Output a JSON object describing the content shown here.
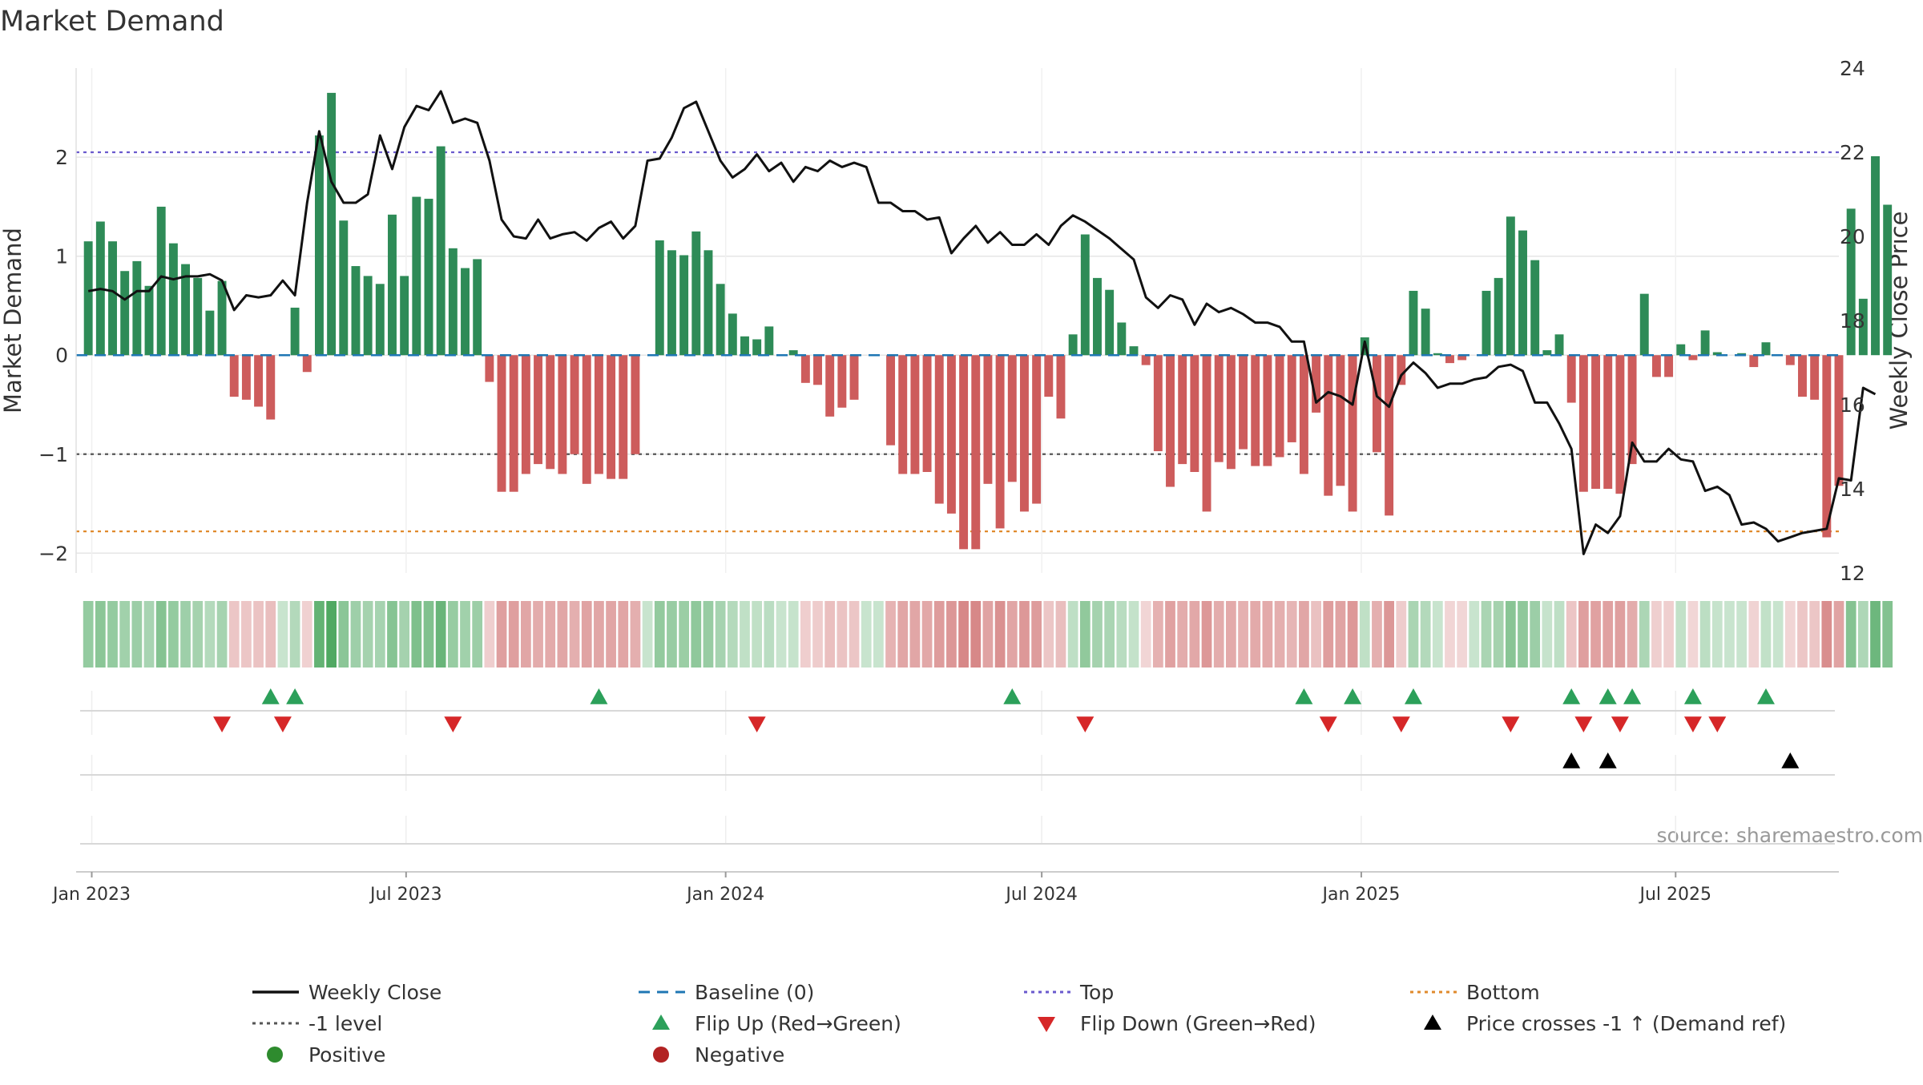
{
  "chart_data": {
    "type": "bar",
    "title": "Market Demand",
    "ylabel_left": "Market Demand",
    "ylabel_right": "Weekly Close Price",
    "left_axis": {
      "ylim": [
        -2.2,
        2.9
      ],
      "ticks": [
        -2,
        -1,
        0,
        1,
        2
      ],
      "tick_labels": [
        "−2",
        "−1",
        "0",
        "1",
        "2"
      ]
    },
    "right_axis": {
      "ylim": [
        12,
        24
      ],
      "ticks": [
        12,
        14,
        16,
        18,
        20,
        22,
        24
      ],
      "tick_labels": [
        "12",
        "14",
        "16",
        "18",
        "20",
        "22",
        "24"
      ]
    },
    "x_axis": {
      "start": "2022-12-23",
      "end": "2025-10-03",
      "ticks": [
        {
          "date": "2023-01-01",
          "label": "Jan 2023"
        },
        {
          "date": "2023-07-01",
          "label": "Jul 2023"
        },
        {
          "date": "2024-01-01",
          "label": "Jan 2024"
        },
        {
          "date": "2024-07-01",
          "label": "Jul 2024"
        },
        {
          "date": "2025-01-01",
          "label": "Jan 2025"
        },
        {
          "date": "2025-07-01",
          "label": "Jul 2025"
        }
      ]
    },
    "first_week": "2022-12-30",
    "demand": [
      1.15,
      1.35,
      1.15,
      0.85,
      0.95,
      0.7,
      1.5,
      1.13,
      0.92,
      0.78,
      0.45,
      0.75,
      -0.42,
      -0.45,
      -0.52,
      -0.65,
      0,
      0.48,
      -0.17,
      2.22,
      2.65,
      1.36,
      0.9,
      0.8,
      0.72,
      1.42,
      0.8,
      1.6,
      1.58,
      2.11,
      1.08,
      0.88,
      0.97,
      -0.27,
      -1.38,
      -1.38,
      -1.2,
      -1.1,
      -1.15,
      -1.2,
      -1.0,
      -1.3,
      -1.2,
      -1.25,
      -1.25,
      -1.0,
      0,
      1.16,
      1.06,
      1.01,
      1.25,
      1.06,
      0.72,
      0.42,
      0.19,
      0.16,
      0.29,
      0,
      0.05,
      -0.28,
      -0.3,
      -0.62,
      -0.53,
      -0.45,
      0,
      0,
      -0.91,
      -1.2,
      -1.2,
      -1.18,
      -1.5,
      -1.6,
      -1.96,
      -1.96,
      -1.3,
      -1.75,
      -1.28,
      -1.58,
      -1.5,
      -0.42,
      -0.64,
      0.21,
      1.22,
      0.78,
      0.66,
      0.33,
      0.09,
      -0.1,
      -0.97,
      -1.33,
      -1.1,
      -1.18,
      -1.58,
      -1.08,
      -1.15,
      -0.95,
      -1.12,
      -1.12,
      -1.03,
      -0.88,
      -1.2,
      -0.58,
      -1.42,
      -1.32,
      -1.58,
      0.18,
      -0.98,
      -1.62,
      -0.3,
      0.65,
      0.47,
      0.02,
      -0.08,
      -0.05,
      0,
      0.65,
      0.78,
      1.4,
      1.26,
      0.96,
      0.05,
      0.21,
      -0.48,
      -1.38,
      -1.35,
      -1.35,
      -1.4,
      -1.1,
      0.62,
      -0.22,
      -0.22,
      0.11,
      -0.05,
      0.25,
      0.03,
      0,
      0.02,
      -0.12,
      0.13,
      0,
      -0.1,
      -0.42,
      -0.45,
      -1.84,
      -1.32,
      1.48,
      0.57,
      2.01,
      1.52
    ],
    "close": [
      18.7,
      18.75,
      18.7,
      18.5,
      18.7,
      18.7,
      19.05,
      18.98,
      19.05,
      19.05,
      19.1,
      18.95,
      18.25,
      18.6,
      18.55,
      18.6,
      18.95,
      18.6,
      20.8,
      22.5,
      21.3,
      20.8,
      20.8,
      21.0,
      22.4,
      21.6,
      22.6,
      23.1,
      23.0,
      23.45,
      22.7,
      22.8,
      22.7,
      21.8,
      20.4,
      20.0,
      19.95,
      20.4,
      19.95,
      20.05,
      20.1,
      19.9,
      20.2,
      20.35,
      19.95,
      20.25,
      21.8,
      21.85,
      22.35,
      23.05,
      23.2,
      22.5,
      21.8,
      21.4,
      21.6,
      21.95,
      21.55,
      21.75,
      21.3,
      21.65,
      21.55,
      21.8,
      21.65,
      21.75,
      21.65,
      20.8,
      20.8,
      20.6,
      20.6,
      20.4,
      20.45,
      19.6,
      19.95,
      20.25,
      19.85,
      20.1,
      19.8,
      19.8,
      20.05,
      19.8,
      20.25,
      20.5,
      20.35,
      20.15,
      19.95,
      19.7,
      19.45,
      18.55,
      18.3,
      18.6,
      18.5,
      17.9,
      18.4,
      18.2,
      18.3,
      18.15,
      17.95,
      17.95,
      17.85,
      17.5,
      17.5,
      16.05,
      16.3,
      16.2,
      16.0,
      17.5,
      16.2,
      15.95,
      16.7,
      17.0,
      16.75,
      16.4,
      16.5,
      16.5,
      16.6,
      16.65,
      16.9,
      16.95,
      16.8,
      16.05,
      16.05,
      15.55,
      14.95,
      12.45,
      13.15,
      12.95,
      13.35,
      15.1,
      14.65,
      14.65,
      14.95,
      14.7,
      14.65,
      13.95,
      14.05,
      13.85,
      13.15,
      13.2,
      13.05,
      12.75,
      12.85,
      12.95,
      13.0,
      13.05,
      14.25,
      14.2,
      16.4,
      16.25
    ]
  },
  "legend": {
    "items": [
      {
        "label": "Weekly Close",
        "symbol": "line-solid",
        "color": "#111111"
      },
      {
        "label": "Baseline (0)",
        "symbol": "line-dashed",
        "color": "#1f77b4"
      },
      {
        "label": "Top",
        "symbol": "line-dotted",
        "color": "#6a5acd"
      },
      {
        "label": "Bottom",
        "symbol": "line-dotted",
        "color": "#e08a2c"
      },
      {
        "label": "-1 level",
        "symbol": "line-dotted",
        "color": "#555555"
      },
      {
        "label": "Flip Up (Red→Green)",
        "symbol": "triangle-up",
        "color": "#2ca05a"
      },
      {
        "label": "Flip Down (Green→Red)",
        "symbol": "triangle-down",
        "color": "#d62728"
      },
      {
        "label": "Price crosses -1 ↑ (Demand ref)",
        "symbol": "triangle-up",
        "color": "#000000"
      },
      {
        "label": "Positive",
        "symbol": "dot",
        "color": "#2e8b2e"
      },
      {
        "label": "Negative",
        "symbol": "dot",
        "color": "#b22222"
      }
    ]
  },
  "reference_lines": {
    "top": 2.05,
    "bottom": -1.78,
    "minus_one": -1.0,
    "baseline": 0
  },
  "events": {
    "flip_up": [
      "2023-04-14",
      "2023-04-28",
      "2023-10-20",
      "2024-06-14",
      "2024-11-29",
      "2024-12-27",
      "2025-01-31",
      "2025-05-02",
      "2025-05-23",
      "2025-06-06",
      "2025-07-11",
      "2025-08-22"
    ],
    "flip_down": [
      "2023-03-17",
      "2023-04-21",
      "2023-07-28",
      "2024-01-19",
      "2024-07-26",
      "2024-12-13",
      "2025-01-24",
      "2025-03-28",
      "2025-05-09",
      "2025-05-30",
      "2025-07-11",
      "2025-07-25"
    ],
    "price_cross": [
      "2025-05-02",
      "2025-05-23",
      "2025-09-05"
    ]
  },
  "source_text": "source: sharemaestro.com",
  "colors": {
    "positive_bar": "#2e8b57",
    "negative_bar": "#cd5c5c",
    "close_line": "#111111",
    "baseline": "#1f77b4",
    "top": "#6a5acd",
    "bottom": "#e08a2c",
    "minus_one": "#555555",
    "grid": "#e6e6e6",
    "axis_text": "#333333",
    "flip_up": "#2ca05a",
    "flip_down": "#d62728",
    "cross": "#000000"
  }
}
